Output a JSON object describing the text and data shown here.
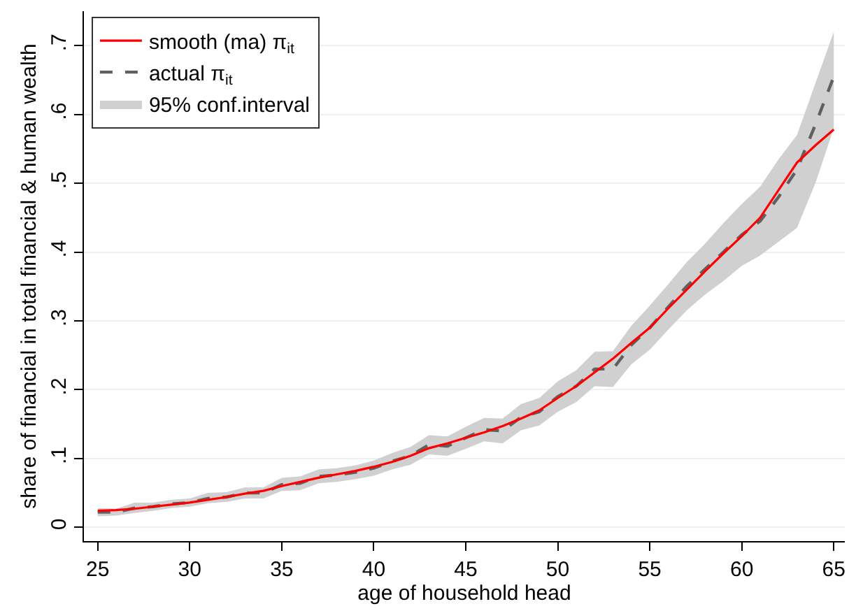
{
  "chart_data": {
    "type": "line",
    "xlabel": "age of household head",
    "ylabel": "share of financial in total financial & human wealth",
    "x": [
      25,
      26,
      27,
      28,
      29,
      30,
      31,
      32,
      33,
      34,
      35,
      36,
      37,
      38,
      39,
      40,
      41,
      42,
      43,
      44,
      45,
      46,
      47,
      48,
      49,
      50,
      51,
      52,
      53,
      54,
      55,
      56,
      57,
      58,
      59,
      60,
      61,
      62,
      63,
      64,
      65
    ],
    "series": [
      {
        "name": "smooth (ma) π$_{it}$",
        "color": "#ff0000",
        "line_style": "solid",
        "values": [
          0.024,
          0.025,
          0.027,
          0.03,
          0.033,
          0.036,
          0.04,
          0.044,
          0.049,
          0.053,
          0.06,
          0.066,
          0.072,
          0.077,
          0.082,
          0.088,
          0.095,
          0.104,
          0.115,
          0.122,
          0.13,
          0.138,
          0.147,
          0.158,
          0.17,
          0.188,
          0.205,
          0.225,
          0.245,
          0.268,
          0.29,
          0.318,
          0.345,
          0.372,
          0.398,
          0.423,
          0.45,
          0.49,
          0.53,
          0.555,
          0.578
        ]
      },
      {
        "name": "actual π$_{it}$",
        "color": "#606060",
        "line_style": "dashed",
        "values": [
          0.022,
          0.022,
          0.028,
          0.03,
          0.034,
          0.036,
          0.042,
          0.044,
          0.05,
          0.05,
          0.062,
          0.064,
          0.074,
          0.076,
          0.08,
          0.086,
          0.096,
          0.104,
          0.12,
          0.118,
          0.13,
          0.142,
          0.14,
          0.16,
          0.168,
          0.19,
          0.205,
          0.23,
          0.23,
          0.265,
          0.29,
          0.32,
          0.35,
          0.375,
          0.4,
          0.425,
          0.445,
          0.48,
          0.52,
          0.585,
          0.655
        ]
      },
      {
        "name": "95% conf.interval",
        "color": "#d0d0d0",
        "values": [
          null,
          null,
          null,
          null,
          null,
          null,
          null,
          null,
          null,
          null,
          null,
          null,
          null,
          null,
          null,
          null,
          null,
          null,
          null,
          null,
          null,
          null,
          null,
          null,
          null,
          null,
          null,
          null,
          null,
          null,
          null,
          null,
          null,
          null,
          null,
          null,
          null,
          null,
          null,
          null,
          null
        ],
        "lower": [
          0.016,
          0.017,
          0.021,
          0.024,
          0.028,
          0.03,
          0.035,
          0.037,
          0.042,
          0.042,
          0.053,
          0.054,
          0.064,
          0.066,
          0.07,
          0.075,
          0.084,
          0.091,
          0.106,
          0.104,
          0.114,
          0.125,
          0.122,
          0.141,
          0.148,
          0.168,
          0.182,
          0.205,
          0.204,
          0.237,
          0.258,
          0.287,
          0.315,
          0.338,
          0.358,
          0.38,
          0.395,
          0.415,
          0.435,
          0.5,
          0.58
        ],
        "upper": [
          0.028,
          0.027,
          0.036,
          0.036,
          0.04,
          0.042,
          0.05,
          0.051,
          0.058,
          0.058,
          0.072,
          0.074,
          0.084,
          0.086,
          0.09,
          0.097,
          0.108,
          0.117,
          0.134,
          0.132,
          0.146,
          0.159,
          0.158,
          0.179,
          0.188,
          0.212,
          0.228,
          0.255,
          0.256,
          0.293,
          0.322,
          0.353,
          0.385,
          0.412,
          0.442,
          0.47,
          0.495,
          0.535,
          0.57,
          0.645,
          0.72
        ]
      }
    ],
    "xlim": [
      24.25,
      65.6
    ],
    "ylim": [
      -0.02,
      0.75
    ],
    "xticks": [
      25,
      30,
      35,
      40,
      45,
      50,
      55,
      60,
      65
    ],
    "yticks": [
      {
        "value": 0,
        "label": "0"
      },
      {
        "value": 0.1,
        "label": ".1"
      },
      {
        "value": 0.2,
        "label": ".2"
      },
      {
        "value": 0.3,
        "label": ".3"
      },
      {
        "value": 0.4,
        "label": ".4"
      },
      {
        "value": 0.5,
        "label": ".5"
      },
      {
        "value": 0.6,
        "label": ".6"
      },
      {
        "value": 0.7,
        "label": ".7"
      }
    ],
    "grid": "y",
    "legend": "top left"
  }
}
